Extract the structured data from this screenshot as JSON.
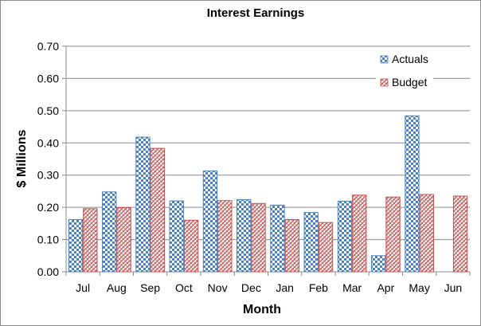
{
  "chart_data": {
    "type": "bar",
    "title": "Interest Earnings",
    "xlabel": "Month",
    "ylabel": "$ Millions",
    "categories": [
      "Jul",
      "Aug",
      "Sep",
      "Oct",
      "Nov",
      "Dec",
      "Jan",
      "Feb",
      "Mar",
      "Apr",
      "May",
      "Jun"
    ],
    "series": [
      {
        "name": "Actuals",
        "values": [
          0.162,
          0.248,
          0.418,
          0.22,
          0.313,
          0.224,
          0.207,
          0.184,
          0.219,
          0.05,
          0.484,
          null
        ],
        "color": "#4f81bd"
      },
      {
        "name": "Budget",
        "values": [
          0.196,
          0.199,
          0.383,
          0.16,
          0.221,
          0.212,
          0.162,
          0.153,
          0.238,
          0.232,
          0.24,
          0.235
        ],
        "color": "#c0504d"
      }
    ],
    "ylim": [
      0,
      0.7
    ],
    "yticks": [
      "0.00",
      "0.10",
      "0.20",
      "0.30",
      "0.40",
      "0.50",
      "0.60",
      "0.70"
    ],
    "grid": true,
    "legend_position": "top-right"
  }
}
